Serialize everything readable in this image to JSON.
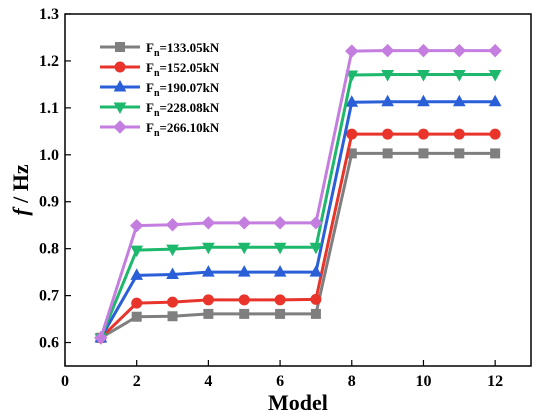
{
  "chart_data": {
    "type": "line",
    "x": [
      1,
      2,
      3,
      4,
      5,
      6,
      7,
      8,
      9,
      10,
      11,
      12
    ],
    "xlabel": "Model",
    "ylabel_italic": "f",
    "ylabel_rest": " / Hz",
    "xlim": [
      0,
      13
    ],
    "ylim": [
      0.55,
      1.3
    ],
    "x_ticks": [
      0,
      2,
      4,
      6,
      8,
      10,
      12
    ],
    "y_ticks": [
      0.6,
      0.7,
      0.8,
      0.9,
      1.0,
      1.1,
      1.2,
      1.3
    ],
    "y_tick_labels": [
      "0.6",
      "0.7",
      "0.8",
      "0.9",
      "1.0",
      "1.1",
      "1.2",
      "1.3"
    ],
    "grid": false,
    "legend_position": "top-left",
    "series": [
      {
        "name_main": "F",
        "name_sub": "n",
        "name_rest": "=133.05kN",
        "color": "#7f7f7f",
        "marker": "square",
        "values": [
          0.61,
          0.655,
          0.656,
          0.661,
          0.661,
          0.661,
          0.661,
          1.003,
          1.003,
          1.003,
          1.003,
          1.003
        ]
      },
      {
        "name_main": "F",
        "name_sub": "n",
        "name_rest": "=152.05kN",
        "color": "#e8342b",
        "marker": "circle",
        "values": [
          0.61,
          0.684,
          0.686,
          0.691,
          0.691,
          0.691,
          0.692,
          1.044,
          1.044,
          1.044,
          1.044,
          1.044
        ]
      },
      {
        "name_main": "F",
        "name_sub": "n",
        "name_rest": "=190.07kN",
        "color": "#2a5fd8",
        "marker": "triangle-up",
        "values": [
          0.61,
          0.743,
          0.745,
          0.75,
          0.75,
          0.75,
          0.75,
          1.112,
          1.113,
          1.113,
          1.113,
          1.113
        ]
      },
      {
        "name_main": "F",
        "name_sub": "n",
        "name_rest": "=228.08kN",
        "color": "#1db86c",
        "marker": "triangle-down",
        "values": [
          0.61,
          0.797,
          0.799,
          0.803,
          0.803,
          0.803,
          0.803,
          1.17,
          1.171,
          1.171,
          1.171,
          1.171
        ]
      },
      {
        "name_main": "F",
        "name_sub": "n",
        "name_rest": "=266.10kN",
        "color": "#c47ee0",
        "marker": "diamond",
        "values": [
          0.61,
          0.849,
          0.851,
          0.855,
          0.855,
          0.855,
          0.855,
          1.221,
          1.222,
          1.222,
          1.222,
          1.222
        ]
      }
    ]
  }
}
